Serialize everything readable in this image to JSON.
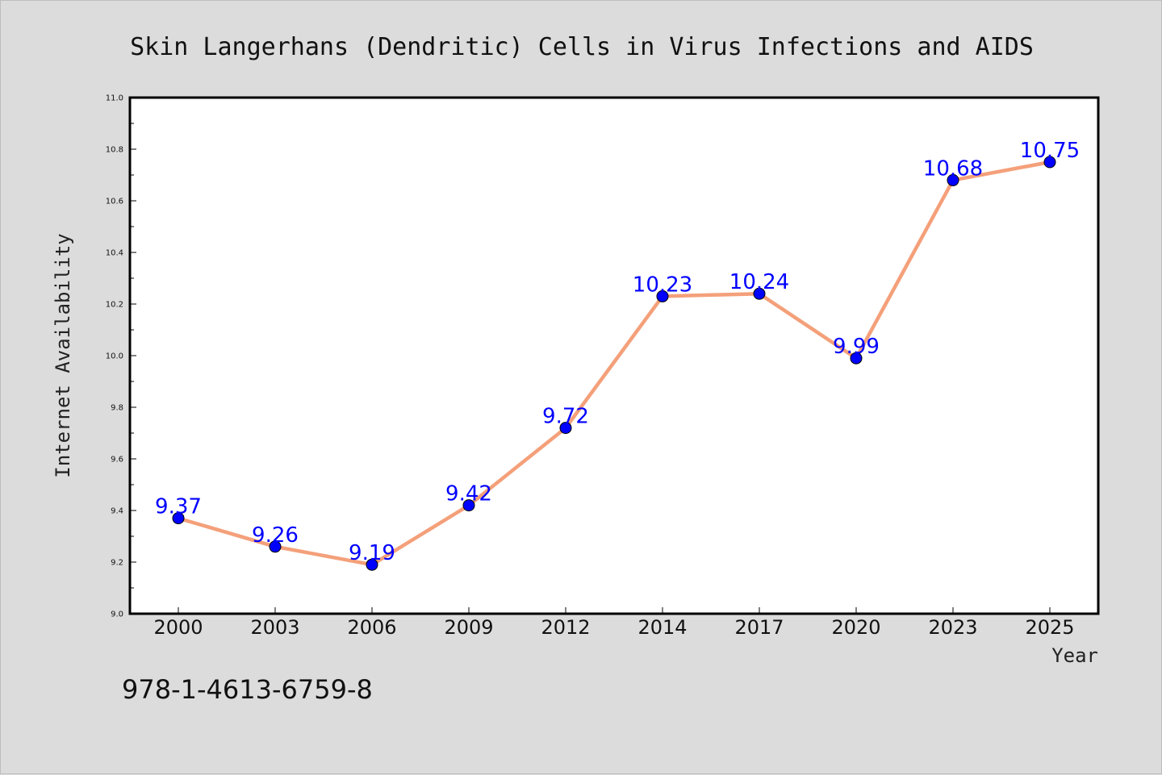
{
  "chart_data": {
    "type": "line",
    "title": "Skin Langerhans (Dendritic) Cells in Virus Infections and AIDS",
    "xlabel": "Year",
    "ylabel": "Internet Availability",
    "categories": [
      "2000",
      "2003",
      "2006",
      "2009",
      "2012",
      "2014",
      "2017",
      "2020",
      "2023",
      "2025"
    ],
    "series": [
      {
        "values": [
          9.37,
          9.26,
          9.19,
          9.42,
          9.72,
          10.23,
          10.24,
          9.99,
          10.68,
          10.75
        ],
        "data_labels": [
          "9.37",
          "9.26",
          "9.19",
          "9.42",
          "9.72",
          "10.23",
          "10.24",
          "9.99",
          "10.68",
          "10.75"
        ]
      }
    ],
    "ylim": [
      9.0,
      11.0
    ],
    "yticks": [
      "9.0",
      "9.2",
      "9.4",
      "9.6",
      "9.8",
      "10.0",
      "10.2",
      "10.4",
      "10.6",
      "10.8",
      "11.0"
    ],
    "grid": false,
    "legend": "none",
    "colors": {
      "line": "#f4a07a",
      "marker": "#0000ff",
      "data_label": "#0000ff",
      "background": "#dcdcdc",
      "plot_background": "#ffffff"
    }
  },
  "footer": {
    "note": "978-1-4613-6759-8"
  }
}
